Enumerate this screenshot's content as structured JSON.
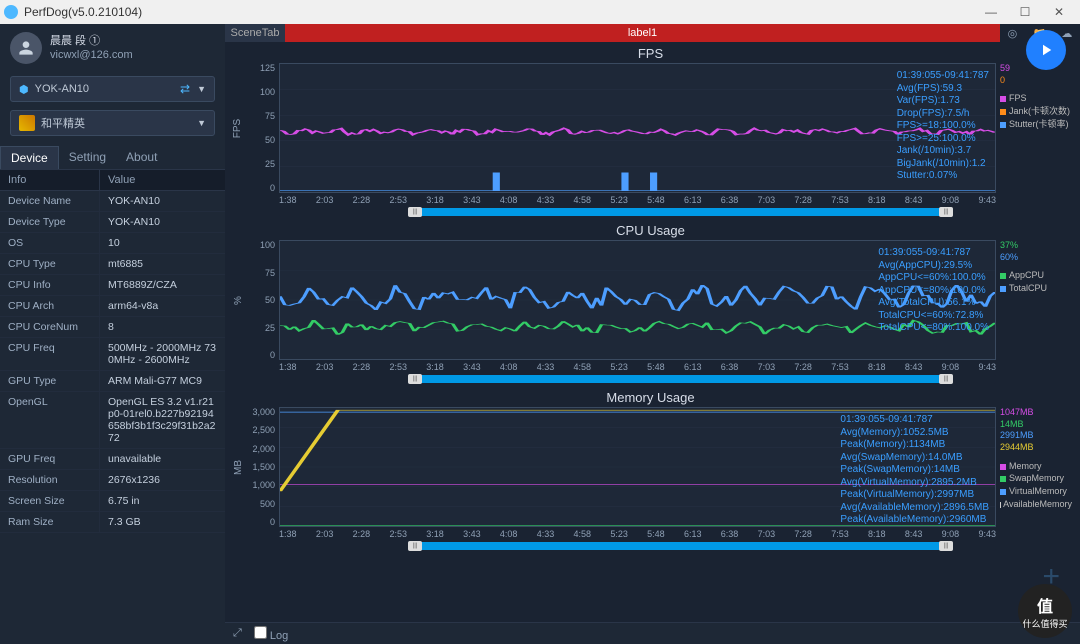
{
  "window": {
    "title": "PerfDog(v5.0.210104)"
  },
  "user": {
    "name": "晨晨 段 ①",
    "email": "vicwxl@126.com"
  },
  "device_sel": "YOK-AN10",
  "app_sel": "和平精英",
  "tabs": {
    "device": "Device",
    "setting": "Setting",
    "about": "About"
  },
  "info_header": {
    "k": "Info",
    "v": "Value"
  },
  "device_info": [
    {
      "k": "Device Name",
      "v": "YOK-AN10"
    },
    {
      "k": "Device Type",
      "v": "YOK-AN10"
    },
    {
      "k": "OS",
      "v": "10"
    },
    {
      "k": "CPU Type",
      "v": "mt6885"
    },
    {
      "k": "CPU Info",
      "v": "MT6889Z/CZA"
    },
    {
      "k": "CPU Arch",
      "v": "arm64-v8a"
    },
    {
      "k": "CPU CoreNum",
      "v": "8"
    },
    {
      "k": "CPU Freq",
      "v": "500MHz - 2000MHz 730MHz - 2600MHz"
    },
    {
      "k": "GPU Type",
      "v": "ARM Mali-G77 MC9"
    },
    {
      "k": "OpenGL",
      "v": "OpenGL ES 3.2 v1.r21p0-01rel0.b227b92194658bf3b1f3c29f31b2a272"
    },
    {
      "k": "GPU Freq",
      "v": "unavailable"
    },
    {
      "k": "Resolution",
      "v": "2676x1236"
    },
    {
      "k": "Screen Size",
      "v": "6.75 in"
    },
    {
      "k": "Ram Size",
      "v": "7.3 GB"
    }
  ],
  "scene": {
    "tab": "SceneTab",
    "label": "label1"
  },
  "xticks": [
    "1:38",
    "2:03",
    "2:28",
    "2:53",
    "3:18",
    "3:43",
    "4:08",
    "4:33",
    "4:58",
    "5:23",
    "5:48",
    "6:13",
    "6:38",
    "7:03",
    "7:28",
    "7:53",
    "8:18",
    "8:43",
    "9:08",
    "9:43"
  ],
  "fps": {
    "title": "FPS",
    "ylabel": "FPS",
    "ylim": [
      0,
      125
    ],
    "yticks": [
      "125",
      "100",
      "75",
      "50",
      "25",
      "0"
    ],
    "height": 130,
    "series": {
      "fps": {
        "color": "#d64de6",
        "mean": 59,
        "noise": 3
      },
      "jank": {
        "color": "#ff8c1a"
      },
      "stutter": {
        "color": "#4d9eff",
        "jumps": [
          0.3,
          0.48,
          0.52
        ]
      }
    },
    "legend_vals": [
      {
        "t": "59",
        "c": "#d64de6"
      },
      {
        "t": "0",
        "c": "#ff8c1a"
      }
    ],
    "legend_items": [
      {
        "t": "FPS",
        "c": "#d64de6"
      },
      {
        "t": "Jank(卡顿次数)",
        "c": "#ff8c1a"
      },
      {
        "t": "Stutter(卡顿率)",
        "c": "#4d9eff"
      }
    ],
    "stats": [
      "01:39:055-09:41:787",
      "Avg(FPS):59.3",
      "Var(FPS):1.73",
      "Drop(FPS):7.5/h",
      "FPS>=18:100.0%",
      "FPS>=25:100.0%",
      "Jank(/10min):3.7",
      "BigJank(/10min):1.2",
      "Stutter:0.07%"
    ]
  },
  "cpu": {
    "title": "CPU Usage",
    "ylabel": "%",
    "ylim": [
      0,
      100
    ],
    "yticks": [
      "100",
      "75",
      "50",
      "25",
      "0"
    ],
    "height": 120,
    "series": {
      "app": {
        "color": "#33cc66",
        "mean": 27,
        "noise": 7
      },
      "total": {
        "color": "#4d9eff",
        "mean": 52,
        "noise": 12
      }
    },
    "legend_vals": [
      {
        "t": "37%",
        "c": "#33cc66"
      },
      {
        "t": "60%",
        "c": "#4d9eff"
      }
    ],
    "legend_items": [
      {
        "t": "AppCPU",
        "c": "#33cc66"
      },
      {
        "t": "TotalCPU",
        "c": "#4d9eff"
      }
    ],
    "stats": [
      "01:39:055-09:41:787",
      "Avg(AppCPU):29.5%",
      "AppCPU<=60%:100.0%",
      "AppCPU<=80%:100.0%",
      "Avg(TotalCPU):56.1%",
      "TotalCPU<=60%:72.8%",
      "TotalCPU<=80%:100.0%"
    ]
  },
  "mem": {
    "title": "Memory Usage",
    "ylabel": "MB",
    "ylim": [
      0,
      3000
    ],
    "yticks": [
      "3,000",
      "2,500",
      "2,000",
      "1,500",
      "1,000",
      "500",
      "0"
    ],
    "height": 120,
    "series": {
      "memory": {
        "color": "#d64de6",
        "flat": 1050
      },
      "swap": {
        "color": "#33cc66",
        "flat": 14
      },
      "virtual": {
        "color": "#4d9eff",
        "flat": 2895
      },
      "available": {
        "color": "#e6cc33",
        "flat": 2944,
        "rise": true
      }
    },
    "legend_vals": [
      {
        "t": "1047MB",
        "c": "#d64de6"
      },
      {
        "t": "14MB",
        "c": "#33cc66"
      },
      {
        "t": "2991MB",
        "c": "#4d9eff"
      },
      {
        "t": "2944MB",
        "c": "#e6cc33"
      }
    ],
    "legend_items": [
      {
        "t": "Memory",
        "c": "#d64de6"
      },
      {
        "t": "SwapMemory",
        "c": "#33cc66"
      },
      {
        "t": "VirtualMemory",
        "c": "#4d9eff"
      },
      {
        "t": "AvailableMemory",
        "c": "#ccc"
      }
    ],
    "stats": [
      "01:39:055-09:41:787",
      "Avg(Memory):1052.5MB",
      "Peak(Memory):1134MB",
      "Avg(SwapMemory):14.0MB",
      "Peak(SwapMemory):14MB",
      "Avg(VirtualMemory):2895.2MB",
      "Peak(VirtualMemory):2997MB",
      "Avg(AvailableMemory):2896.5MB",
      "Peak(AvailableMemory):2960MB"
    ]
  },
  "bottom": {
    "log": "Log"
  },
  "colors": {
    "bg": "#1a2332",
    "panel": "#1e2838",
    "grid": "#2a3548"
  }
}
